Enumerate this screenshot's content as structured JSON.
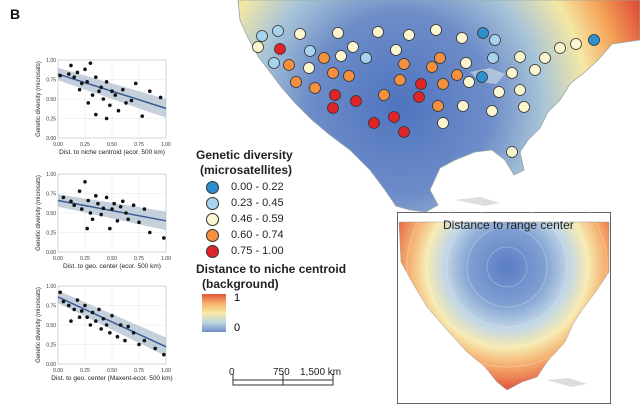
{
  "panel_label": "B",
  "scatterplots": [
    {
      "ylabel": "Genetic diversity (microsats)",
      "xlabel": "Dist. to niche centroid (ecor. 500 km)",
      "xticks": [
        "0.00",
        "0.25",
        "0.50",
        "0.75",
        "1.00"
      ],
      "yticks": [
        "1.00",
        "0.75",
        "0.50",
        "0.25",
        "0.00"
      ],
      "points": [
        [
          0.02,
          0.8
        ],
        [
          0.1,
          0.82
        ],
        [
          0.12,
          0.93
        ],
        [
          0.15,
          0.78
        ],
        [
          0.18,
          0.84
        ],
        [
          0.2,
          0.62
        ],
        [
          0.22,
          0.7
        ],
        [
          0.25,
          0.88
        ],
        [
          0.27,
          0.72
        ],
        [
          0.3,
          0.96
        ],
        [
          0.32,
          0.55
        ],
        [
          0.35,
          0.78
        ],
        [
          0.38,
          0.6
        ],
        [
          0.4,
          0.65
        ],
        [
          0.42,
          0.5
        ],
        [
          0.45,
          0.72
        ],
        [
          0.48,
          0.42
        ],
        [
          0.5,
          0.6
        ],
        [
          0.53,
          0.55
        ],
        [
          0.56,
          0.35
        ],
        [
          0.6,
          0.62
        ],
        [
          0.63,
          0.45
        ],
        [
          0.68,
          0.48
        ],
        [
          0.72,
          0.7
        ],
        [
          0.78,
          0.28
        ],
        [
          0.85,
          0.6
        ],
        [
          0.95,
          0.52
        ],
        [
          0.35,
          0.3
        ],
        [
          0.28,
          0.45
        ],
        [
          0.45,
          0.25
        ]
      ],
      "fit": [
        0.82,
        0.38
      ]
    },
    {
      "ylabel": "Genetic diversity (microsats)",
      "xlabel": "Dist. to geo. center (ecor. 500 km)",
      "xticks": [
        "0.00",
        "0.25",
        "0.50",
        "0.75",
        "1.00"
      ],
      "yticks": [
        "1.00",
        "0.75",
        "0.50",
        "0.25",
        "0.00"
      ],
      "points": [
        [
          0.05,
          0.7
        ],
        [
          0.12,
          0.65
        ],
        [
          0.15,
          0.6
        ],
        [
          0.2,
          0.78
        ],
        [
          0.22,
          0.55
        ],
        [
          0.25,
          0.9
        ],
        [
          0.28,
          0.66
        ],
        [
          0.3,
          0.5
        ],
        [
          0.32,
          0.42
        ],
        [
          0.35,
          0.72
        ],
        [
          0.37,
          0.62
        ],
        [
          0.4,
          0.48
        ],
        [
          0.42,
          0.56
        ],
        [
          0.45,
          0.7
        ],
        [
          0.48,
          0.3
        ],
        [
          0.5,
          0.55
        ],
        [
          0.52,
          0.62
        ],
        [
          0.55,
          0.4
        ],
        [
          0.58,
          0.58
        ],
        [
          0.6,
          0.65
        ],
        [
          0.63,
          0.5
        ],
        [
          0.65,
          0.42
        ],
        [
          0.7,
          0.6
        ],
        [
          0.75,
          0.38
        ],
        [
          0.8,
          0.55
        ],
        [
          0.85,
          0.25
        ],
        [
          0.98,
          0.18
        ],
        [
          0.27,
          0.3
        ]
      ],
      "fit": [
        0.66,
        0.4
      ]
    },
    {
      "ylabel": "Genetic diversity (microsats)",
      "xlabel": "Dist. to geo. center (Maxent-ecor. 500 km)",
      "xticks": [
        "0.00",
        "0.25",
        "0.50",
        "0.75",
        "1.00"
      ],
      "yticks": [
        "1.00",
        "0.75",
        "0.50",
        "0.25",
        "0.00"
      ],
      "points": [
        [
          0.02,
          0.92
        ],
        [
          0.05,
          0.8
        ],
        [
          0.1,
          0.75
        ],
        [
          0.12,
          0.55
        ],
        [
          0.15,
          0.7
        ],
        [
          0.18,
          0.82
        ],
        [
          0.2,
          0.6
        ],
        [
          0.22,
          0.68
        ],
        [
          0.25,
          0.75
        ],
        [
          0.27,
          0.6
        ],
        [
          0.3,
          0.5
        ],
        [
          0.32,
          0.66
        ],
        [
          0.35,
          0.55
        ],
        [
          0.38,
          0.7
        ],
        [
          0.4,
          0.45
        ],
        [
          0.42,
          0.58
        ],
        [
          0.45,
          0.5
        ],
        [
          0.48,
          0.4
        ],
        [
          0.5,
          0.62
        ],
        [
          0.55,
          0.35
        ],
        [
          0.58,
          0.5
        ],
        [
          0.62,
          0.3
        ],
        [
          0.65,
          0.48
        ],
        [
          0.7,
          0.4
        ],
        [
          0.75,
          0.25
        ],
        [
          0.8,
          0.3
        ],
        [
          0.9,
          0.2
        ],
        [
          0.98,
          0.12
        ]
      ],
      "fit": [
        0.86,
        0.22
      ]
    }
  ],
  "legend": {
    "gd_title_line1": "Genetic diversity",
    "gd_title_line2": "(microsatellites)",
    "classes": [
      {
        "label": "0.00 - 0.22",
        "color": "#2f8fce"
      },
      {
        "label": "0.23 - 0.45",
        "color": "#a6d4ee"
      },
      {
        "label": "0.46 - 0.59",
        "color": "#fbf6cf"
      },
      {
        "label": "0.60 - 0.74",
        "color": "#f5913e"
      },
      {
        "label": "0.75 - 1.00",
        "color": "#e0252a"
      }
    ],
    "dist_title_line1": "Distance to niche centroid",
    "dist_title_line2": "(background)",
    "grad_max": "1",
    "grad_min": "0"
  },
  "scale_bar": {
    "labels": [
      "0",
      "750",
      "1,500 km"
    ]
  },
  "inset": {
    "title": "Distance to range center"
  },
  "map_points": [
    {
      "x": 262,
      "y": 36,
      "c": 1
    },
    {
      "x": 278,
      "y": 31,
      "c": 1
    },
    {
      "x": 300,
      "y": 34,
      "c": 2
    },
    {
      "x": 338,
      "y": 33,
      "c": 2
    },
    {
      "x": 378,
      "y": 32,
      "c": 2
    },
    {
      "x": 409,
      "y": 35,
      "c": 2
    },
    {
      "x": 436,
      "y": 30,
      "c": 2
    },
    {
      "x": 462,
      "y": 38,
      "c": 2
    },
    {
      "x": 483,
      "y": 33,
      "c": 0
    },
    {
      "x": 495,
      "y": 40,
      "c": 1
    },
    {
      "x": 576,
      "y": 44,
      "c": 2
    },
    {
      "x": 594,
      "y": 40,
      "c": 0
    },
    {
      "x": 258,
      "y": 47,
      "c": 2
    },
    {
      "x": 280,
      "y": 49,
      "c": 4
    },
    {
      "x": 274,
      "y": 63,
      "c": 1
    },
    {
      "x": 310,
      "y": 51,
      "c": 1
    },
    {
      "x": 324,
      "y": 58,
      "c": 3
    },
    {
      "x": 341,
      "y": 56,
      "c": 2
    },
    {
      "x": 353,
      "y": 47,
      "c": 2
    },
    {
      "x": 366,
      "y": 58,
      "c": 1
    },
    {
      "x": 396,
      "y": 50,
      "c": 2
    },
    {
      "x": 440,
      "y": 58,
      "c": 3
    },
    {
      "x": 466,
      "y": 63,
      "c": 2
    },
    {
      "x": 493,
      "y": 58,
      "c": 1
    },
    {
      "x": 520,
      "y": 57,
      "c": 2
    },
    {
      "x": 545,
      "y": 58,
      "c": 2
    },
    {
      "x": 560,
      "y": 48,
      "c": 2
    },
    {
      "x": 289,
      "y": 65,
      "c": 3
    },
    {
      "x": 309,
      "y": 68,
      "c": 2
    },
    {
      "x": 333,
      "y": 73,
      "c": 3
    },
    {
      "x": 349,
      "y": 76,
      "c": 3
    },
    {
      "x": 404,
      "y": 64,
      "c": 3
    },
    {
      "x": 432,
      "y": 67,
      "c": 3
    },
    {
      "x": 457,
      "y": 75,
      "c": 3
    },
    {
      "x": 482,
      "y": 77,
      "c": 0
    },
    {
      "x": 512,
      "y": 73,
      "c": 2
    },
    {
      "x": 535,
      "y": 70,
      "c": 2
    },
    {
      "x": 296,
      "y": 82,
      "c": 3
    },
    {
      "x": 315,
      "y": 88,
      "c": 3
    },
    {
      "x": 335,
      "y": 95,
      "c": 4
    },
    {
      "x": 400,
      "y": 80,
      "c": 3
    },
    {
      "x": 421,
      "y": 84,
      "c": 4
    },
    {
      "x": 443,
      "y": 84,
      "c": 3
    },
    {
      "x": 469,
      "y": 82,
      "c": 2
    },
    {
      "x": 499,
      "y": 92,
      "c": 2
    },
    {
      "x": 520,
      "y": 90,
      "c": 2
    },
    {
      "x": 356,
      "y": 101,
      "c": 4
    },
    {
      "x": 384,
      "y": 95,
      "c": 3
    },
    {
      "x": 419,
      "y": 97,
      "c": 4
    },
    {
      "x": 438,
      "y": 106,
      "c": 3
    },
    {
      "x": 463,
      "y": 106,
      "c": 2
    },
    {
      "x": 492,
      "y": 111,
      "c": 2
    },
    {
      "x": 524,
      "y": 107,
      "c": 2
    },
    {
      "x": 333,
      "y": 108,
      "c": 4
    },
    {
      "x": 374,
      "y": 123,
      "c": 4
    },
    {
      "x": 394,
      "y": 117,
      "c": 4
    },
    {
      "x": 404,
      "y": 132,
      "c": 4
    },
    {
      "x": 443,
      "y": 123,
      "c": 2
    },
    {
      "x": 512,
      "y": 152,
      "c": 2
    }
  ]
}
